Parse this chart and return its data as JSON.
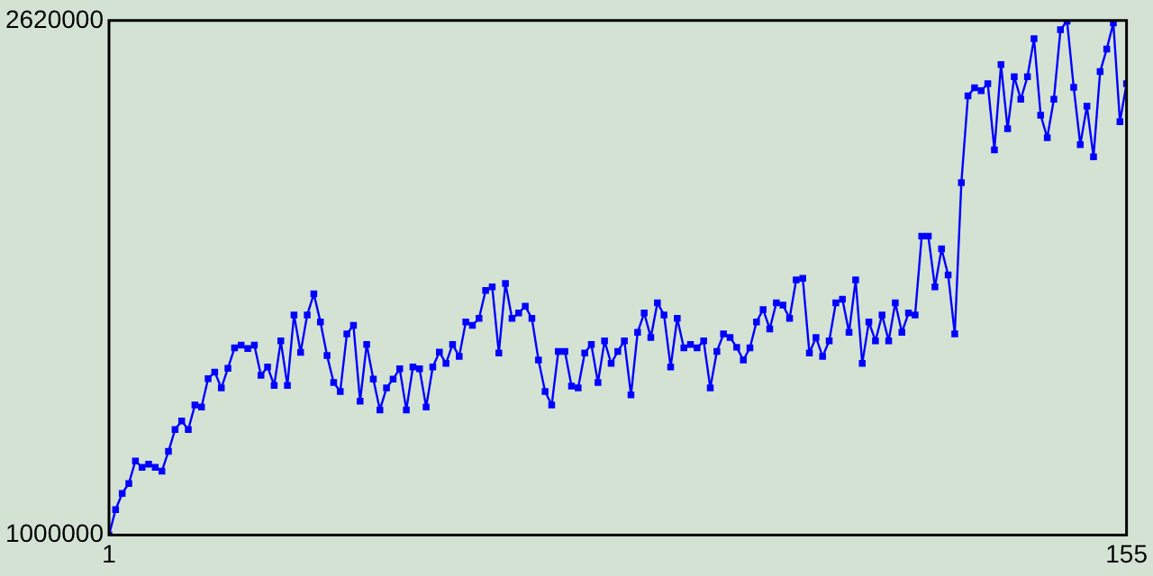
{
  "chart_data": {
    "type": "line",
    "x": [
      1,
      2,
      3,
      4,
      5,
      6,
      7,
      8,
      9,
      10,
      11,
      12,
      13,
      14,
      15,
      16,
      17,
      18,
      19,
      20,
      21,
      22,
      23,
      24,
      25,
      26,
      27,
      28,
      29,
      30,
      31,
      32,
      33,
      34,
      35,
      36,
      37,
      38,
      39,
      40,
      41,
      42,
      43,
      44,
      45,
      46,
      47,
      48,
      49,
      50,
      51,
      52,
      53,
      54,
      55,
      56,
      57,
      58,
      59,
      60,
      61,
      62,
      63,
      64,
      65,
      66,
      67,
      68,
      69,
      70,
      71,
      72,
      73,
      74,
      75,
      76,
      77,
      78,
      79,
      80,
      81,
      82,
      83,
      84,
      85,
      86,
      87,
      88,
      89,
      90,
      91,
      92,
      93,
      94,
      95,
      96,
      97,
      98,
      99,
      100,
      101,
      102,
      103,
      104,
      105,
      106,
      107,
      108,
      109,
      110,
      111,
      112,
      113,
      114,
      115,
      116,
      117,
      118,
      119,
      120,
      121,
      122,
      123,
      124,
      125,
      126,
      127,
      128,
      129,
      130,
      131,
      132,
      133,
      134,
      135,
      136,
      137,
      138,
      139,
      140,
      141,
      142,
      143,
      144,
      145,
      146,
      147,
      148,
      149,
      150,
      151,
      152,
      153,
      154,
      155
    ],
    "series": [
      {
        "color": "#0000ff",
        "values": [
          1000000,
          1080000,
          1131000,
          1162000,
          1233000,
          1213000,
          1223000,
          1213000,
          1201000,
          1263000,
          1332000,
          1359000,
          1332000,
          1409000,
          1403000,
          1492000,
          1513000,
          1463000,
          1525000,
          1589000,
          1598000,
          1587000,
          1598000,
          1503000,
          1529000,
          1471000,
          1611000,
          1471000,
          1693000,
          1575000,
          1693000,
          1759000,
          1671000,
          1565000,
          1480000,
          1452000,
          1633000,
          1660000,
          1421000,
          1600000,
          1491000,
          1394000,
          1463000,
          1491000,
          1523000,
          1394000,
          1529000,
          1523000,
          1403000,
          1529000,
          1576000,
          1540000,
          1600000,
          1562000,
          1671000,
          1660000,
          1682000,
          1770000,
          1781000,
          1573000,
          1792000,
          1682000,
          1699000,
          1720000,
          1682000,
          1551000,
          1452000,
          1409000,
          1578000,
          1578000,
          1469000,
          1463000,
          1573000,
          1600000,
          1480000,
          1611000,
          1540000,
          1578000,
          1611000,
          1441000,
          1638000,
          1699000,
          1622000,
          1731000,
          1693000,
          1529000,
          1682000,
          1589000,
          1600000,
          1589000,
          1611000,
          1463000,
          1578000,
          1633000,
          1622000,
          1591000,
          1551000,
          1589000,
          1671000,
          1710000,
          1649000,
          1731000,
          1724000,
          1682000,
          1803000,
          1808000,
          1573000,
          1622000,
          1562000,
          1611000,
          1731000,
          1742000,
          1638000,
          1803000,
          1540000,
          1671000,
          1611000,
          1693000,
          1611000,
          1731000,
          1638000,
          1699000,
          1693000,
          1941000,
          1941000,
          1781000,
          1901000,
          1819000,
          1633000,
          2109000,
          2383000,
          2408000,
          2399000,
          2421000,
          2213000,
          2481000,
          2279000,
          2443000,
          2372000,
          2443000,
          2563000,
          2322000,
          2251000,
          2372000,
          2591000,
          2618000,
          2410000,
          2229000,
          2350000,
          2191000,
          2459000,
          2530000,
          2612000,
          2301000,
          2421000
        ]
      }
    ],
    "xlim": [
      1,
      155
    ],
    "xticks": [
      1,
      155
    ],
    "ylim": [
      1000000,
      2620000
    ],
    "yticks": [
      1000000,
      2620000
    ],
    "legend": false,
    "marker": "square",
    "line_style": "solid"
  }
}
